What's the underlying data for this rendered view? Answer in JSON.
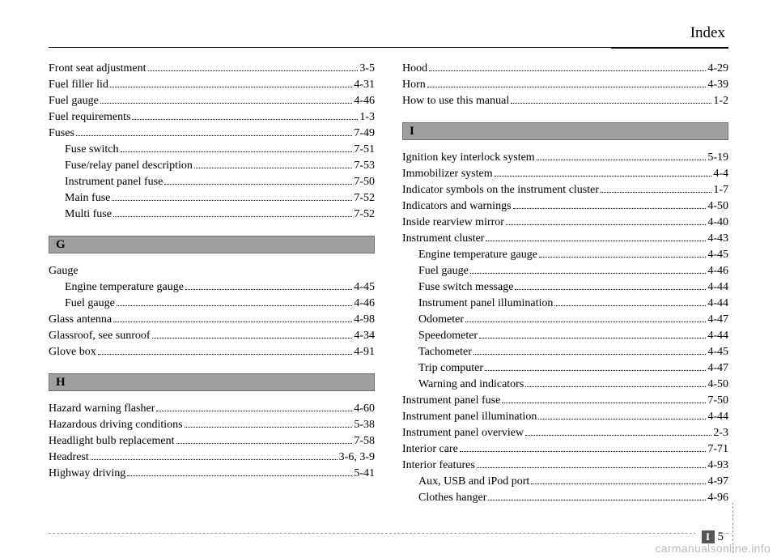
{
  "header": {
    "section": "Index"
  },
  "left": {
    "top": [
      {
        "label": "Front seat adjustment",
        "pg": "3-5",
        "indent": false
      },
      {
        "label": "Fuel filler lid",
        "pg": "4-31",
        "indent": false
      },
      {
        "label": "Fuel gauge",
        "pg": "4-46",
        "indent": false
      },
      {
        "label": "Fuel requirements",
        "pg": "1-3",
        "indent": false
      },
      {
        "label": "Fuses",
        "pg": "7-49",
        "indent": false
      },
      {
        "label": "Fuse switch",
        "pg": "7-51",
        "indent": true
      },
      {
        "label": "Fuse/relay panel description",
        "pg": "7-53",
        "indent": true
      },
      {
        "label": "Instrument panel fuse",
        "pg": "7-50",
        "indent": true
      },
      {
        "label": "Main fuse",
        "pg": "7-52",
        "indent": true
      },
      {
        "label": "Multi fuse",
        "pg": "7-52",
        "indent": true
      }
    ],
    "g_title": "G",
    "g": [
      {
        "label": "Gauge",
        "pg": "",
        "indent": false,
        "nodots": true
      },
      {
        "label": "Engine temperature gauge",
        "pg": "4-45",
        "indent": true
      },
      {
        "label": "Fuel gauge",
        "pg": "4-46",
        "indent": true
      },
      {
        "label": "Glass antenna",
        "pg": "4-98",
        "indent": false
      },
      {
        "label": "Glassroof, see sunroof",
        "pg": "4-34",
        "indent": false
      },
      {
        "label": "Glove box",
        "pg": "4-91",
        "indent": false
      }
    ],
    "h_title": "H",
    "h": [
      {
        "label": "Hazard warning flasher",
        "pg": "4-60",
        "indent": false
      },
      {
        "label": "Hazardous driving conditions",
        "pg": "5-38",
        "indent": false
      },
      {
        "label": "Headlight bulb replacement",
        "pg": "7-58",
        "indent": false
      },
      {
        "label": "Headrest",
        "pg": "3-6, 3-9",
        "indent": false
      },
      {
        "label": "Highway driving",
        "pg": "5-41",
        "indent": false
      }
    ]
  },
  "right": {
    "top": [
      {
        "label": "Hood",
        "pg": "4-29",
        "indent": false
      },
      {
        "label": "Horn",
        "pg": "4-39",
        "indent": false
      },
      {
        "label": "How to use this manual",
        "pg": "1-2",
        "indent": false
      }
    ],
    "i_title": "I",
    "i": [
      {
        "label": "Ignition key interlock system",
        "pg": "5-19",
        "indent": false
      },
      {
        "label": "Immobilizer system",
        "pg": "4-4",
        "indent": false
      },
      {
        "label": "Indicator symbols on the instrument cluster",
        "pg": "1-7",
        "indent": false
      },
      {
        "label": "Indicators and warnings",
        "pg": "4-50",
        "indent": false
      },
      {
        "label": "Inside rearview mirror",
        "pg": "4-40",
        "indent": false
      },
      {
        "label": "Instrument cluster",
        "pg": "4-43",
        "indent": false
      },
      {
        "label": "Engine temperature gauge",
        "pg": "4-45",
        "indent": true
      },
      {
        "label": "Fuel gauge",
        "pg": "4-46",
        "indent": true
      },
      {
        "label": "Fuse switch message",
        "pg": "4-44",
        "indent": true
      },
      {
        "label": "Instrument panel illumination",
        "pg": "4-44",
        "indent": true
      },
      {
        "label": "Odometer",
        "pg": "4-47",
        "indent": true
      },
      {
        "label": "Speedometer",
        "pg": "4-44",
        "indent": true
      },
      {
        "label": "Tachometer",
        "pg": "4-45",
        "indent": true
      },
      {
        "label": "Trip computer",
        "pg": "4-47",
        "indent": true
      },
      {
        "label": "Warning and indicators",
        "pg": "4-50",
        "indent": true
      },
      {
        "label": "Instrument panel fuse",
        "pg": "7-50",
        "indent": false
      },
      {
        "label": "Instrument panel illumination",
        "pg": "4-44",
        "indent": false
      },
      {
        "label": "Instrument panel overview",
        "pg": "2-3",
        "indent": false
      },
      {
        "label": "Interior care",
        "pg": "7-71",
        "indent": false
      },
      {
        "label": "Interior features",
        "pg": "4-93",
        "indent": false
      },
      {
        "label": "Aux, USB and iPod port",
        "pg": "4-97",
        "indent": true
      },
      {
        "label": "Clothes hanger",
        "pg": "4-96",
        "indent": true
      }
    ]
  },
  "footer": {
    "page_letter": "I",
    "page_number": "5"
  },
  "watermark": "carmanualsonline.info"
}
